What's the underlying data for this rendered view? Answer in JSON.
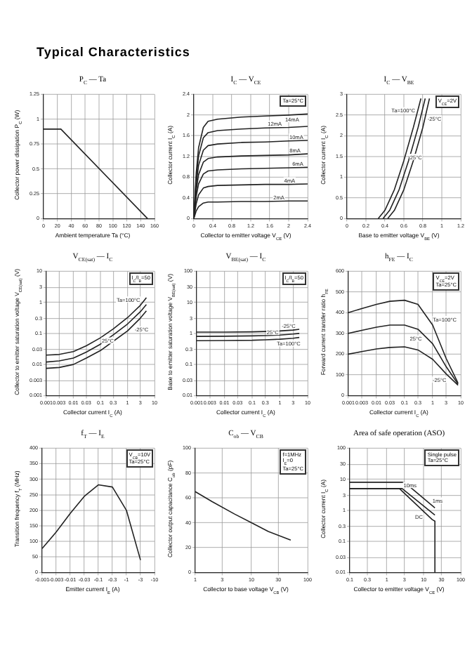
{
  "chart_data": [
    {
      "type": "other",
      "title": "Typical Characteristics"
    },
    {
      "type": "line",
      "title": "P$_{C}$ — Ta",
      "xlabel": "Ambient temperature  Ta  (°C)",
      "ylabel": "Collector power dissipation  P$_{C}$  (W)",
      "grid": true,
      "marker": "none",
      "line_style": "solid",
      "xlim": [
        0,
        160
      ],
      "xticks": [
        0,
        20,
        40,
        60,
        80,
        100,
        120,
        140,
        160
      ],
      "ylim": [
        0,
        1.25
      ],
      "yticks": [
        0,
        0.25,
        0.5,
        0.75,
        1.0,
        1.25
      ],
      "series": [
        {
          "color": "#222222",
          "x": [
            0,
            25,
            150
          ],
          "values": [
            0.9,
            0.9,
            0
          ]
        }
      ]
    },
    {
      "type": "line",
      "title": "I$_{C}$ — V$_{CE}$",
      "xlabel": "Collector to emitter voltage  V$_{CE}$  (V)",
      "ylabel": "Collector current  I$_{C}$  (A)",
      "grid": true,
      "marker": "none",
      "line_style": "solid",
      "annotations": [
        "Ta=25°C"
      ],
      "xlim": [
        0,
        2.4
      ],
      "xticks": [
        0,
        0.4,
        0.8,
        1.2,
        1.6,
        2.0,
        2.4
      ],
      "ylim": [
        0,
        2.4
      ],
      "yticks": [
        0,
        0.4,
        0.8,
        1.2,
        1.6,
        2.0,
        2.4
      ],
      "series": [
        {
          "name": "14mA",
          "color": "#222222",
          "x": [
            0,
            0.05,
            0.1,
            0.2,
            0.3,
            0.5,
            1.0,
            1.5,
            2.0,
            2.4
          ],
          "values": [
            0,
            0.88,
            1.37,
            1.76,
            1.88,
            1.92,
            1.96,
            1.98,
            2.0,
            2.02
          ]
        },
        {
          "name": "12mA",
          "color": "#222222",
          "x": [
            0,
            0.05,
            0.1,
            0.2,
            0.3,
            0.5,
            1.0,
            1.5,
            2.0,
            2.4
          ],
          "values": [
            0,
            0.78,
            1.21,
            1.56,
            1.66,
            1.7,
            1.73,
            1.75,
            1.76,
            1.78
          ]
        },
        {
          "name": "10mA",
          "color": "#222222",
          "x": [
            0,
            0.05,
            0.1,
            0.2,
            0.3,
            0.5,
            1.0,
            1.5,
            2.0,
            2.4
          ],
          "values": [
            0,
            0.66,
            1.03,
            1.32,
            1.41,
            1.44,
            1.47,
            1.48,
            1.5,
            1.51
          ]
        },
        {
          "name": "8mA",
          "color": "#222222",
          "x": [
            0,
            0.05,
            0.1,
            0.2,
            0.3,
            0.5,
            1.0,
            1.5,
            2.0,
            2.4
          ],
          "values": [
            0,
            0.54,
            0.85,
            1.09,
            1.16,
            1.19,
            1.21,
            1.22,
            1.23,
            1.25
          ]
        },
        {
          "name": "6mA",
          "color": "#222222",
          "x": [
            0,
            0.05,
            0.1,
            0.2,
            0.3,
            0.5,
            1.0,
            1.5,
            2.0,
            2.4
          ],
          "values": [
            0,
            0.43,
            0.67,
            0.86,
            0.92,
            0.94,
            0.96,
            0.97,
            0.98,
            0.99
          ]
        },
        {
          "name": "4mA",
          "color": "#222222",
          "x": [
            0,
            0.05,
            0.1,
            0.2,
            0.3,
            0.5,
            1.0,
            1.5,
            2.0,
            2.4
          ],
          "values": [
            0,
            0.29,
            0.46,
            0.59,
            0.62,
            0.64,
            0.65,
            0.66,
            0.66,
            0.67
          ]
        },
        {
          "name": "2mA",
          "color": "#222222",
          "x": [
            0,
            0.05,
            0.1,
            0.2,
            0.3,
            0.5,
            1.0,
            1.5,
            2.0,
            2.4
          ],
          "values": [
            0,
            0.15,
            0.23,
            0.3,
            0.32,
            0.32,
            0.33,
            0.33,
            0.34,
            0.34
          ]
        }
      ]
    },
    {
      "type": "line",
      "title": "I$_{C}$ — V$_{BE}$",
      "xlabel": "Base to emitter voltage  V$_{BE}$  (V)",
      "ylabel": "Collector current  I$_{C}$  (A)",
      "grid": true,
      "marker": "none",
      "line_style": "solid",
      "annotations": [
        "V$_{CE}$=2V"
      ],
      "xlim": [
        0,
        1.2
      ],
      "xticks": [
        0,
        0.2,
        0.4,
        0.6,
        0.8,
        1.0,
        1.2
      ],
      "ylim": [
        0,
        3.0
      ],
      "yticks": [
        0,
        0.5,
        1.0,
        1.5,
        2.0,
        2.5,
        3.0
      ],
      "series": [
        {
          "name": "Ta=100°C",
          "color": "#222222",
          "x": [
            0.33,
            0.4,
            0.5,
            0.6,
            0.7,
            0.78
          ],
          "values": [
            0,
            0.2,
            0.7,
            1.4,
            2.2,
            2.9
          ]
        },
        {
          "name": "25°C",
          "color": "#222222",
          "x": [
            0.38,
            0.45,
            0.55,
            0.65,
            0.75,
            0.825
          ],
          "values": [
            0,
            0.2,
            0.7,
            1.4,
            2.2,
            2.9
          ]
        },
        {
          "name": "-25°C",
          "color": "#222222",
          "x": [
            0.43,
            0.5,
            0.6,
            0.7,
            0.8,
            0.87
          ],
          "values": [
            0,
            0.2,
            0.7,
            1.4,
            2.2,
            2.9
          ]
        }
      ]
    },
    {
      "type": "line",
      "title": "V$_{CE(sat)}$ — I$_{C}$",
      "xlabel": "Collector current  I$_{C}$  (A)",
      "ylabel": "Collector to emitter saturation voltage  V$_{CE(sat)}$  (V)",
      "grid": true,
      "log": "xy",
      "marker": "none",
      "line_style": "solid",
      "annotations": [
        "I$_{C}$/I$_{B}$=50"
      ],
      "xlim": [
        0.001,
        10
      ],
      "xticks": [
        0.001,
        0.003,
        0.01,
        0.03,
        0.1,
        0.3,
        1,
        3,
        10
      ],
      "ylim": [
        0.001,
        10
      ],
      "yticks": [
        0.001,
        0.003,
        0.01,
        0.03,
        0.1,
        0.3,
        1,
        3,
        10
      ],
      "series": [
        {
          "name": "Ta=100°C",
          "color": "#222222",
          "x": [
            0.001,
            0.003,
            0.01,
            0.03,
            0.1,
            0.3,
            1,
            3,
            5
          ],
          "values": [
            0.02,
            0.021,
            0.026,
            0.04,
            0.072,
            0.14,
            0.32,
            0.8,
            1.4
          ]
        },
        {
          "name": "25°C",
          "color": "#222222",
          "x": [
            0.001,
            0.003,
            0.01,
            0.03,
            0.1,
            0.3,
            1,
            3,
            5
          ],
          "values": [
            0.012,
            0.013,
            0.016,
            0.025,
            0.045,
            0.09,
            0.2,
            0.5,
            0.85
          ]
        },
        {
          "name": "-25°C",
          "color": "#222222",
          "x": [
            0.001,
            0.003,
            0.01,
            0.03,
            0.1,
            0.3,
            1,
            3,
            5
          ],
          "values": [
            0.0075,
            0.008,
            0.01,
            0.016,
            0.028,
            0.056,
            0.12,
            0.31,
            0.53
          ]
        }
      ]
    },
    {
      "type": "line",
      "title": "V$_{BE(sat)}$ — I$_{C}$",
      "xlabel": "Collector current  I$_{C}$  (A)",
      "ylabel": "Base to emitter saturation voltage  V$_{BE(sat)}$  (V)",
      "grid": true,
      "log": "xy",
      "marker": "none",
      "line_style": "solid",
      "annotations": [
        "I$_{C}$/I$_{B}$=50"
      ],
      "xlim": [
        0.001,
        10
      ],
      "xticks": [
        0.001,
        0.003,
        0.01,
        0.03,
        0.1,
        0.3,
        1,
        3,
        10
      ],
      "ylim": [
        0.01,
        100
      ],
      "yticks": [
        0.01,
        0.03,
        0.1,
        0.3,
        1,
        3,
        10,
        30,
        100
      ],
      "series": [
        {
          "name": "-25°C",
          "color": "#222222",
          "x": [
            0.001,
            0.01,
            0.1,
            0.3,
            1,
            3,
            5
          ],
          "values": [
            1.1,
            1.1,
            1.12,
            1.15,
            1.2,
            1.28,
            1.35
          ]
        },
        {
          "name": "25°C",
          "color": "#222222",
          "x": [
            0.001,
            0.01,
            0.1,
            0.3,
            1,
            3,
            5
          ],
          "values": [
            0.8,
            0.81,
            0.83,
            0.85,
            0.88,
            0.95,
            1.0
          ]
        },
        {
          "name": "Ta=100°C",
          "color": "#222222",
          "x": [
            0.001,
            0.01,
            0.1,
            0.3,
            1,
            3,
            5
          ],
          "values": [
            0.58,
            0.59,
            0.6,
            0.62,
            0.65,
            0.7,
            0.74
          ]
        }
      ]
    },
    {
      "type": "line",
      "title": "h$_{FE}$ — I$_{C}$",
      "xlabel": "Collector current  I$_{C}$  (A)",
      "ylabel": "Forward current transfer ratio  h$_{FE}$",
      "grid": true,
      "log": "x",
      "marker": "none",
      "line_style": "solid",
      "annotations": [
        "V$_{CE}$=2V",
        "Ta=25°C"
      ],
      "xlim": [
        0.001,
        10
      ],
      "xticks": [
        0.001,
        0.003,
        0.01,
        0.03,
        0.1,
        0.3,
        1,
        3,
        10
      ],
      "ylim": [
        0,
        600
      ],
      "yticks": [
        0,
        100,
        200,
        300,
        400,
        500,
        600
      ],
      "series": [
        {
          "name": "Ta=100°C",
          "color": "#222222",
          "x": [
            0.001,
            0.003,
            0.01,
            0.03,
            0.1,
            0.3,
            1,
            3,
            8
          ],
          "values": [
            400,
            420,
            440,
            455,
            460,
            440,
            340,
            180,
            60
          ]
        },
        {
          "name": "25°C",
          "color": "#222222",
          "x": [
            0.001,
            0.003,
            0.01,
            0.03,
            0.1,
            0.3,
            1,
            3,
            8
          ],
          "values": [
            300,
            315,
            330,
            340,
            340,
            320,
            250,
            140,
            55
          ]
        },
        {
          "name": "-25°C",
          "color": "#222222",
          "x": [
            0.001,
            0.003,
            0.01,
            0.03,
            0.1,
            0.3,
            1,
            3,
            8
          ],
          "values": [
            200,
            212,
            225,
            232,
            235,
            220,
            175,
            105,
            50
          ]
        }
      ]
    },
    {
      "type": "line",
      "title": "f$_{T}$ — I$_{E}$",
      "xlabel": "Emitter current  I$_{E}$  (A)",
      "ylabel": "Transition frequency  f$_{T}$  (MHz)",
      "grid": true,
      "marker": "none",
      "line_style": "solid",
      "annotations": [
        "V$_{CB}$=10V",
        "Ta=25°C"
      ],
      "categories": [
        "-0.001",
        "-0.003",
        "-0.01",
        "-0.03",
        "-0.1",
        "-0.3",
        "-1",
        "-3",
        "-10"
      ],
      "ylim": [
        0,
        400
      ],
      "yticks": [
        0,
        50,
        100,
        150,
        200,
        250,
        300,
        350,
        400
      ],
      "series": [
        {
          "color": "#222222",
          "values": [
            77,
            130,
            190,
            245,
            282,
            275,
            200,
            40,
            null
          ]
        }
      ]
    },
    {
      "type": "line",
      "title": "C$_{ob}$ — V$_{CB}$",
      "xlabel": "Collector to base voltage  V$_{CB}$  (V)",
      "ylabel": "Collector output capacitance  C$_{ob}$  (pF)",
      "grid": true,
      "log": "x",
      "marker": "none",
      "line_style": "solid",
      "annotations": [
        "f=1MHz",
        "I$_{E}$=0",
        "Ta=25°C"
      ],
      "xlim": [
        1,
        100
      ],
      "xticks": [
        1,
        3,
        10,
        30,
        100
      ],
      "ylim": [
        0,
        100
      ],
      "yticks": [
        0,
        20,
        40,
        60,
        80,
        100
      ],
      "series": [
        {
          "color": "#222222",
          "x": [
            1,
            2,
            5,
            10,
            20,
            50
          ],
          "values": [
            65,
            57,
            47,
            40,
            33,
            26
          ]
        }
      ]
    },
    {
      "type": "line",
      "title": "Area of safe operation (ASO)",
      "xlabel": "Collector to emitter voltage  V$_{CE}$  (V)",
      "ylabel": "Collector current  I$_{C}$  (A)",
      "grid": true,
      "log": "xy",
      "marker": "none",
      "line_style": "solid",
      "annotations": [
        "Single pulse",
        "Ta=25°C"
      ],
      "xlim": [
        0.1,
        100
      ],
      "xticks": [
        0.1,
        0.3,
        1,
        3,
        10,
        30,
        100
      ],
      "ylim": [
        0.01,
        100
      ],
      "yticks": [
        0.01,
        0.03,
        0.1,
        0.3,
        1,
        3,
        10,
        30,
        100
      ],
      "series": [
        {
          "name": "1ms",
          "color": "#222222",
          "x": [
            0.1,
            3,
            20
          ],
          "values": [
            8,
            8,
            1.2
          ]
        },
        {
          "name": "10ms",
          "color": "#222222",
          "x": [
            0.1,
            2.6,
            20
          ],
          "values": [
            5,
            5,
            0.7
          ]
        },
        {
          "name": "DC",
          "color": "#222222",
          "x": [
            0.1,
            2.2,
            17,
            20,
            20
          ],
          "values": [
            5,
            5,
            0.5,
            0.45,
            0.01
          ]
        }
      ]
    }
  ]
}
